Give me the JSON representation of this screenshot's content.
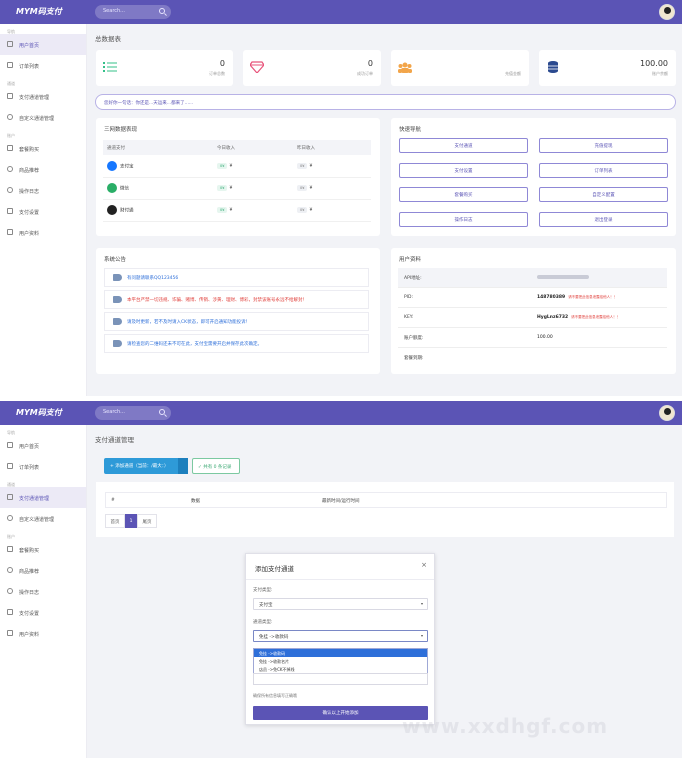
{
  "app": {
    "logo": "MYM码支付",
    "search_placeholder": "Search..."
  },
  "sidebar": {
    "groups": [
      "导航",
      "通道",
      "账户"
    ],
    "items": [
      "用户首页",
      "订单列表",
      "支付通道管理",
      "自定义通道管理",
      "套餐购买",
      "商品推荐",
      "操作日志",
      "支付设置",
      "用户资料"
    ]
  },
  "dashboard": {
    "page_title": "总数据表",
    "stats": [
      {
        "value": "0",
        "label": "订单总数"
      },
      {
        "value": "0",
        "label": "成功订单"
      },
      {
        "value": "",
        "label": "充值金额"
      },
      {
        "value": "100.00",
        "label": "账户余额"
      }
    ],
    "notice": "您好你一句话：你还是...天运来...都来了......",
    "channel_table": {
      "title": "三网数据表现",
      "headers": [
        "通道支付",
        "今日收入",
        "昨日收入"
      ],
      "rows": [
        {
          "name": "支付宝",
          "today_tag": "0¥",
          "today": "¥",
          "yesterday_tag": "0¥",
          "yesterday": "¥",
          "color": "#1677ff"
        },
        {
          "name": "微信",
          "today_tag": "0¥",
          "today": "¥",
          "yesterday_tag": "0¥",
          "yesterday": "¥",
          "color": "#2aae67"
        },
        {
          "name": "财付通",
          "today_tag": "0¥",
          "today": "¥",
          "yesterday_tag": "0¥",
          "yesterday": "¥",
          "color": "#e0413d"
        }
      ]
    },
    "quick_nav": {
      "title": "快速导航",
      "buttons": [
        "支付通道",
        "充值提现",
        "支付设置",
        "订单列表",
        "套餐购买",
        "自定义配置",
        "操作日志",
        "退出登录"
      ]
    },
    "system_notice": {
      "title": "系统公告",
      "items": [
        {
          "text": "有问题请联系QQ123456",
          "tone": "blue"
        },
        {
          "text": "本平台严禁一切违规、诈骗、赌博、传销、涉黄、理财、博彩，封禁该账号永远不给解封！",
          "tone": "red"
        },
        {
          "text": "请及时更新，若不及时请入CK状态，即可开启通知功能投诉！",
          "tone": "blue"
        },
        {
          "text": "请检查您的二维码还未不可在此，支付宝需要开启并保存此次确定。",
          "tone": "blue"
        }
      ]
    },
    "user_info": {
      "title": "用户资料",
      "rows": [
        {
          "key": "API地址:",
          "value": "",
          "warn": ""
        },
        {
          "key": "PID:",
          "value": "148780389",
          "warn": "请不要把此信息泄露给他人！！"
        },
        {
          "key": "KEY:",
          "value": "HygLnz6732",
          "warn": "请不要把此信息泄露给他人！！"
        },
        {
          "key": "账户额度:",
          "value": "100.00",
          "warn": ""
        },
        {
          "key": "套餐到期:",
          "value": "",
          "warn": ""
        }
      ]
    }
  },
  "channel_page": {
    "page_title": "支付通道管理",
    "add_button": "+ 添加通道（当前：/最大：）",
    "check_button": "✓ 共有 0 条记录",
    "table_headers": [
      "#",
      "数据",
      "最新时间/运行时间"
    ],
    "pager": [
      "首页",
      "1",
      "尾页"
    ]
  },
  "modal": {
    "title": "添加支付通道",
    "close": "×",
    "pay_type_label": "支付类型:",
    "pay_type_value": "支付宝",
    "channel_type_label": "通道类型:",
    "channel_type_value": "免挂 ->收款码",
    "options": [
      "免挂 ->收款码",
      "免挂 ->收款名片",
      "店员 ->免CK不掉线"
    ],
    "hint": "确保所有信息填写正确哦",
    "submit": "确认以上开始添加"
  },
  "watermark": "www.xxdhgf.com",
  "colors": {
    "brand": "#5b54b5",
    "danger": "#e0413d",
    "info": "#2e6fd9",
    "success": "#2aae67"
  }
}
